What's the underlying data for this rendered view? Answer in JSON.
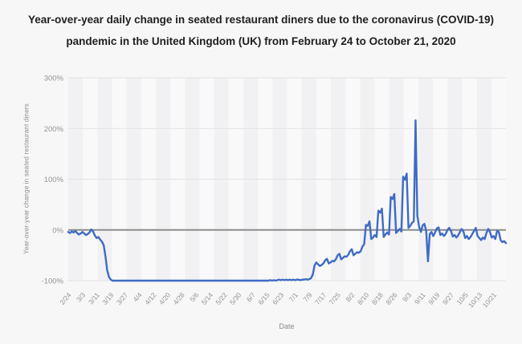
{
  "title": "Year-over-year daily change in seated restaurant diners due to the coronavirus (COVID-19) pandemic in the United Kingdom (UK) from February 24 to October 21, 2020",
  "colors": {
    "line": "#3e6bc4",
    "zero_line": "#8c8c8c",
    "gridline": "#e3e3e5",
    "band_dark": "#f1f1f3",
    "band_light": "#f9f9fa",
    "tick_text": "#949494",
    "title_text": "#1e1e1e"
  },
  "chart_data": {
    "type": "line",
    "title": "Year-over-year daily change in seated restaurant diners due to the coronavirus (COVID-19) pandemic in the United Kingdom (UK) from February 24 to October 21, 2020",
    "xlabel": "Date",
    "ylabel": "Year-over-year change in seated restaurant diners",
    "x_unit": "daily values from 2/24/2020 to 10/21/2020",
    "x_tick_interval_days": 8,
    "x_tick_labels": [
      "2/24",
      "3/3",
      "3/11",
      "3/19",
      "3/27",
      "4/4",
      "4/12",
      "4/20",
      "4/28",
      "5/6",
      "5/14",
      "5/22",
      "5/30",
      "6/7",
      "6/15",
      "6/23",
      "7/1",
      "7/9",
      "7/17",
      "7/25",
      "8/2",
      "8/10",
      "8/18",
      "8/26",
      "9/3",
      "9/11",
      "9/19",
      "9/27",
      "10/5",
      "10/13",
      "10/21"
    ],
    "y_ticks": [
      {
        "label": "300%",
        "value": 300
      },
      {
        "label": "200%",
        "value": 200
      },
      {
        "label": "100%",
        "value": 100
      },
      {
        "label": "0%",
        "value": 0
      },
      {
        "label": "-100%",
        "value": -100
      }
    ],
    "ylim": [
      -100,
      300
    ],
    "grid": "horizontal",
    "legend": "none",
    "series": [
      {
        "name": "Year-over-year change in seated restaurant diners (%)",
        "values": [
          -4,
          -6,
          -3,
          -5,
          -2,
          -6,
          -9,
          -7,
          -4,
          -7,
          -10,
          -8,
          -5,
          1,
          -3,
          -11,
          -16,
          -14,
          -19,
          -23,
          -30,
          -52,
          -80,
          -93,
          -98,
          -100,
          -100,
          -100,
          -100,
          -100,
          -100,
          -100,
          -100,
          -100,
          -100,
          -100,
          -100,
          -100,
          -100,
          -100,
          -100,
          -100,
          -100,
          -100,
          -100,
          -100,
          -100,
          -100,
          -100,
          -100,
          -100,
          -100,
          -100,
          -100,
          -100,
          -100,
          -100,
          -100,
          -100,
          -100,
          -100,
          -100,
          -100,
          -100,
          -100,
          -100,
          -100,
          -100,
          -100,
          -100,
          -100,
          -100,
          -100,
          -100,
          -100,
          -100,
          -100,
          -100,
          -100,
          -100,
          -100,
          -100,
          -100,
          -100,
          -100,
          -100,
          -100,
          -100,
          -100,
          -100,
          -100,
          -100,
          -100,
          -100,
          -100,
          -100,
          -100,
          -100,
          -100,
          -100,
          -100,
          -100,
          -100,
          -100,
          -100,
          -100,
          -100,
          -100,
          -100,
          -100,
          -100,
          -100,
          -100,
          -100,
          -99,
          -100,
          -99,
          -100,
          -99,
          -98,
          -99,
          -98,
          -99,
          -98,
          -99,
          -98,
          -99,
          -98,
          -99,
          -98,
          -98,
          -99,
          -98,
          -98,
          -97,
          -98,
          -97,
          -95,
          -88,
          -70,
          -64,
          -68,
          -71,
          -69,
          -66,
          -60,
          -57,
          -66,
          -64,
          -61,
          -62,
          -58,
          -50,
          -47,
          -58,
          -55,
          -52,
          -53,
          -49,
          -42,
          -38,
          -50,
          -47,
          -44,
          -45,
          -42,
          -33,
          -28,
          10,
          8,
          17,
          -18,
          -15,
          -10,
          -14,
          38,
          34,
          42,
          -14,
          -9,
          -5,
          -9,
          65,
          61,
          71,
          -6,
          -2,
          2,
          -3,
          105,
          99,
          111,
          4,
          8,
          14,
          17,
          216,
          28,
          6,
          -4,
          9,
          12,
          -2,
          -62,
          -8,
          -4,
          -12,
          -5,
          3,
          5,
          -10,
          -7,
          -12,
          -8,
          0,
          4,
          -2,
          -13,
          -10,
          -15,
          -11,
          -4,
          2,
          -3,
          -16,
          -12,
          -18,
          -14,
          -8,
          -2,
          4,
          -12,
          -16,
          -20,
          -15,
          -18,
          -6,
          2,
          -4,
          -15,
          -12,
          -18,
          -2,
          -4,
          -20,
          -24,
          -22,
          -26
        ]
      }
    ]
  }
}
